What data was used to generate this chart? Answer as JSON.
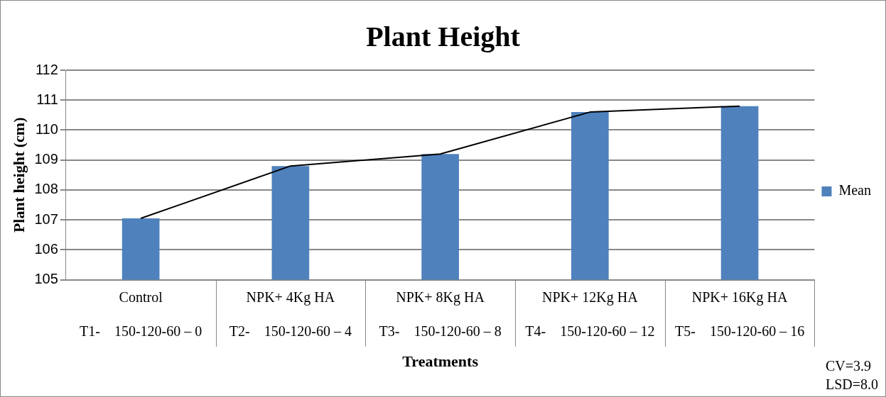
{
  "chart_data": {
    "type": "bar",
    "title": "Plant Height",
    "xlabel": "Treatments",
    "ylabel": "Plant height (cm)",
    "categories": [
      "Control\nT1-    150-120-60 – 0",
      "NPK+ 4Kg HA\nT2-    150-120-60 – 4",
      "NPK+ 8Kg HA\nT3-    150-120-60 – 8",
      "NPK+ 12Kg HA\nT4-    150-120-60 – 12",
      "NPK+ 16Kg HA\nT5-    150-120-60 – 16"
    ],
    "series": [
      {
        "name": "Mean",
        "color": "#4f81bd",
        "values": [
          107.05,
          108.8,
          109.2,
          110.6,
          110.8
        ]
      },
      {
        "type": "line",
        "color": "#000000",
        "values": [
          107.05,
          108.8,
          109.2,
          110.6,
          110.8
        ]
      }
    ],
    "ylim": [
      105,
      112
    ],
    "yticks": [
      105,
      106,
      107,
      108,
      109,
      110,
      111,
      112
    ],
    "grid": "y",
    "legend": "right",
    "marker": "none",
    "annotations": [
      "CV=3.9",
      "LSD=8.0"
    ]
  }
}
